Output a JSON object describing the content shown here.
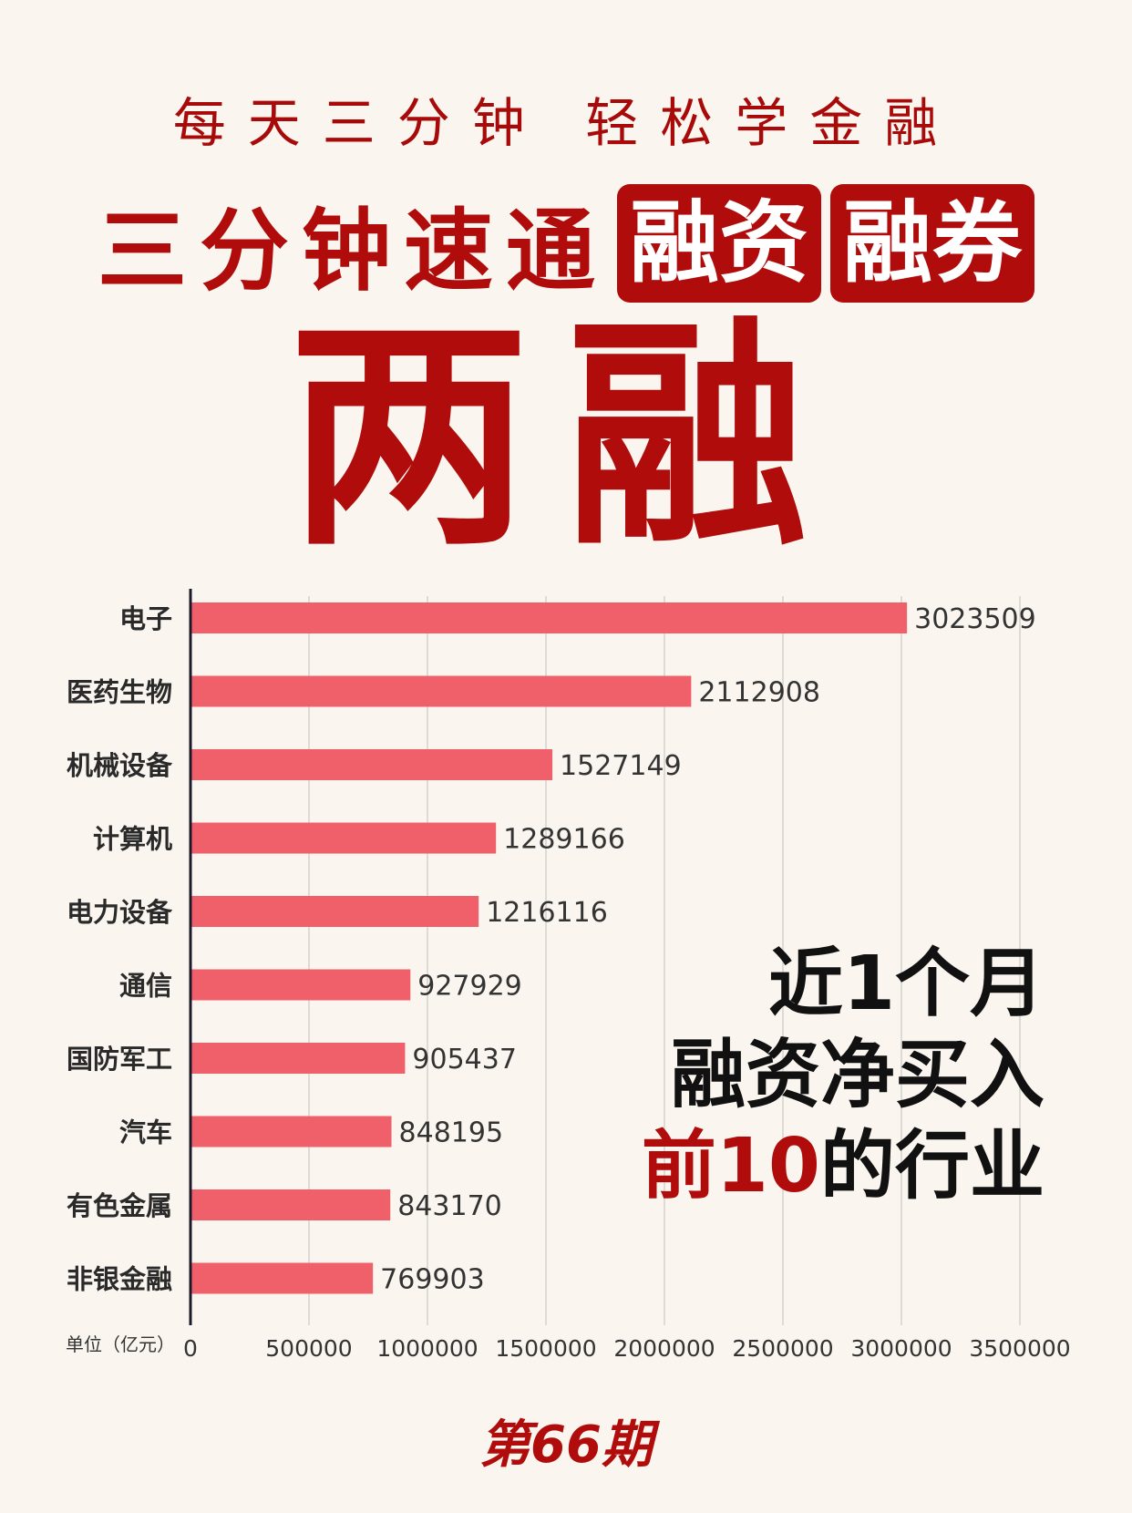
{
  "header": {
    "tagline": "每天三分钟  轻松学金融",
    "title_plain": "三分钟速通",
    "title_box_1": "融资",
    "title_box_2": "融券",
    "big_title": "两融"
  },
  "overlay": {
    "line1": "近1个月",
    "line2": "融资净买入",
    "line3_highlight": "前10",
    "line3_rest": "的行业"
  },
  "footer": {
    "issue": "第66期"
  },
  "colors": {
    "accent": "#b10c0c",
    "bar": "#f0606a",
    "background": "#faf5ef"
  },
  "chart_data": {
    "type": "bar",
    "orientation": "horizontal",
    "unit_label": "单位（亿元）",
    "categories": [
      "电子",
      "医药生物",
      "机械设备",
      "计算机",
      "电力设备",
      "通信",
      "国防军工",
      "汽车",
      "有色金属",
      "非银金融"
    ],
    "values": [
      3023509,
      2112908,
      1527149,
      1289166,
      1216116,
      927929,
      905437,
      848195,
      843170,
      769903
    ],
    "xlim": [
      0,
      3500000
    ],
    "xticks": [
      0,
      500000,
      1000000,
      1500000,
      2000000,
      2500000,
      3000000,
      3500000
    ],
    "grid": true
  }
}
